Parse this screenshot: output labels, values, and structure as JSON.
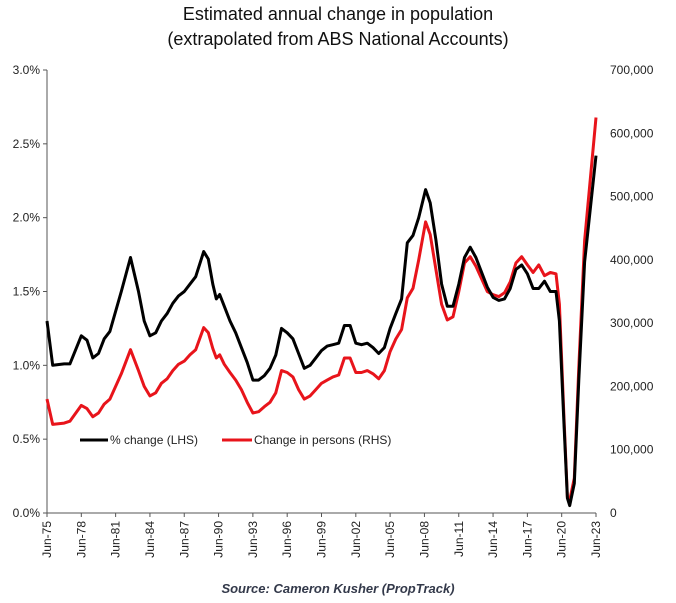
{
  "chart_data": {
    "type": "line",
    "title": [
      "Estimated annual change in population",
      "(extrapolated from ABS National Accounts)"
    ],
    "source": "Source: Cameron Kusher (PropTrack)",
    "xlabel": "",
    "x_ticks": [
      "Jun-75",
      "Jun-78",
      "Jun-81",
      "Jun-84",
      "Jun-87",
      "Jun-90",
      "Jun-93",
      "Jun-96",
      "Jun-99",
      "Jun-02",
      "Jun-05",
      "Jun-08",
      "Jun-11",
      "Jun-14",
      "Jun-17",
      "Jun-20",
      "Jun-23"
    ],
    "xlim": [
      1975.5,
      2023.5
    ],
    "y_left": {
      "label": "% change",
      "ylim": [
        0,
        3.0
      ],
      "ticks": [
        "0.0%",
        "0.5%",
        "1.0%",
        "1.5%",
        "2.0%",
        "2.5%",
        "3.0%"
      ]
    },
    "y_right": {
      "label": "Change in persons",
      "ylim": [
        0,
        700000
      ],
      "ticks": [
        "0",
        "100,000",
        "200,000",
        "300,000",
        "400,000",
        "500,000",
        "600,000",
        "700,000"
      ]
    },
    "grid": false,
    "legend_position": "bottom-left",
    "x": [
      1975.5,
      1976,
      1977,
      1977.5,
      1978.5,
      1979,
      1979.5,
      1980,
      1980.5,
      1981,
      1982,
      1982.8,
      1983.5,
      1984,
      1984.5,
      1985,
      1985.5,
      1986,
      1986.5,
      1987,
      1987.5,
      1988,
      1988.5,
      1989.2,
      1989.6,
      1990,
      1990.3,
      1990.6,
      1991,
      1991.5,
      1992,
      1992.5,
      1993,
      1993.5,
      1994,
      1994.5,
      1995,
      1995.5,
      1996,
      1996.5,
      1997,
      1997.5,
      1998,
      1998.5,
      1999,
      1999.5,
      2000,
      2000.5,
      2001,
      2001.5,
      2002,
      2002.5,
      2003,
      2003.5,
      2004,
      2004.5,
      2005,
      2005.5,
      2006,
      2006.5,
      2007,
      2007.5,
      2008,
      2008.6,
      2009,
      2009.5,
      2010,
      2010.5,
      2011,
      2011.5,
      2012,
      2012.5,
      2013,
      2013.5,
      2014,
      2014.5,
      2015,
      2015.5,
      2016,
      2016.5,
      2017,
      2017.5,
      2018,
      2018.5,
      2019,
      2019.5,
      2020,
      2020.3,
      2020.7,
      2021.0,
      2021.2,
      2021.6,
      2022,
      2022.5,
      2023.5
    ],
    "series": [
      {
        "name": "% change (LHS)",
        "axis": "left",
        "color": "#000000",
        "values": [
          1.3,
          1.0,
          1.01,
          1.01,
          1.2,
          1.17,
          1.05,
          1.08,
          1.18,
          1.23,
          1.5,
          1.73,
          1.5,
          1.3,
          1.2,
          1.22,
          1.3,
          1.35,
          1.42,
          1.47,
          1.5,
          1.55,
          1.6,
          1.77,
          1.72,
          1.55,
          1.45,
          1.48,
          1.4,
          1.3,
          1.22,
          1.12,
          1.02,
          0.9,
          0.9,
          0.93,
          0.98,
          1.07,
          1.25,
          1.22,
          1.18,
          1.08,
          0.98,
          1.0,
          1.05,
          1.1,
          1.13,
          1.14,
          1.15,
          1.27,
          1.27,
          1.15,
          1.14,
          1.15,
          1.12,
          1.08,
          1.12,
          1.25,
          1.35,
          1.45,
          1.83,
          1.88,
          2.0,
          2.19,
          2.1,
          1.85,
          1.55,
          1.4,
          1.4,
          1.55,
          1.73,
          1.8,
          1.73,
          1.63,
          1.53,
          1.46,
          1.44,
          1.45,
          1.52,
          1.65,
          1.68,
          1.62,
          1.52,
          1.52,
          1.57,
          1.5,
          1.5,
          1.3,
          0.6,
          0.1,
          0.05,
          0.2,
          0.9,
          1.7,
          2.42
        ]
      },
      {
        "name": "Change in persons (RHS)",
        "axis": "right",
        "color": "#e8141b",
        "values": [
          180000,
          140000,
          142000,
          145000,
          170000,
          165000,
          152000,
          158000,
          172000,
          180000,
          220000,
          258000,
          225000,
          200000,
          185000,
          190000,
          205000,
          212000,
          225000,
          235000,
          240000,
          250000,
          258000,
          293000,
          285000,
          260000,
          245000,
          250000,
          235000,
          222000,
          210000,
          195000,
          175000,
          158000,
          160000,
          168000,
          175000,
          190000,
          225000,
          222000,
          215000,
          195000,
          180000,
          185000,
          195000,
          205000,
          210000,
          215000,
          218000,
          245000,
          245000,
          222000,
          222000,
          225000,
          220000,
          212000,
          225000,
          255000,
          275000,
          290000,
          340000,
          355000,
          400000,
          460000,
          440000,
          385000,
          330000,
          305000,
          310000,
          350000,
          395000,
          405000,
          390000,
          370000,
          350000,
          345000,
          342000,
          348000,
          365000,
          395000,
          405000,
          392000,
          380000,
          392000,
          375000,
          380000,
          378000,
          330000,
          150000,
          25000,
          20000,
          55000,
          230000,
          430000,
          625000
        ]
      }
    ]
  }
}
